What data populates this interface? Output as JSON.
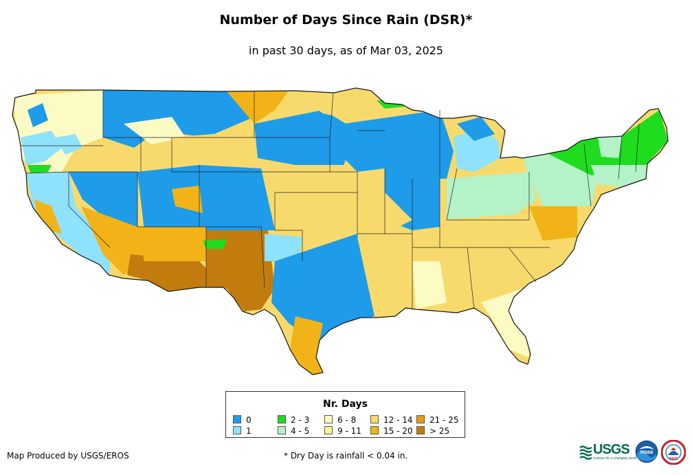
{
  "title": "Number of Days Since Rain (DSR)*",
  "subtitle": "in past 30 days, as of Mar 03, 2025",
  "legend": {
    "title": "Nr. Days",
    "items": [
      {
        "label": "0",
        "color": "#1e9be9"
      },
      {
        "label": "1",
        "color": "#8ee2fb"
      },
      {
        "label": "2 - 3",
        "color": "#1fdc1f"
      },
      {
        "label": "4 - 5",
        "color": "#b4f2c8"
      },
      {
        "label": "6 - 8",
        "color": "#fdfbc4"
      },
      {
        "label": "9 - 11",
        "color": "#f8f292"
      },
      {
        "label": "12 - 14",
        "color": "#f8da6c"
      },
      {
        "label": "15 - 20",
        "color": "#f2b318"
      },
      {
        "label": "21 - 25",
        "color": "#e89910"
      },
      {
        "label": "> 25",
        "color": "#c27c0e"
      }
    ]
  },
  "footer": {
    "credit": "Map Produced by USGS/EROS",
    "note": "* Dry Day is rainfall < 0.04 in."
  },
  "logos": {
    "usgs": "USGS",
    "usgs_tagline": "science for a changing world",
    "noaa": "noaa",
    "nws": "NWS"
  }
}
